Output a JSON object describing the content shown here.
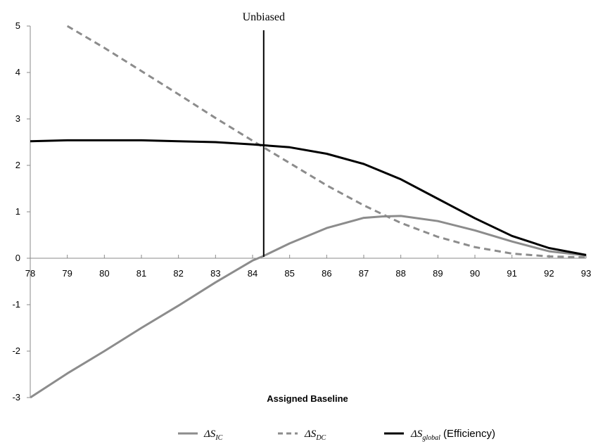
{
  "chart_data": {
    "type": "line",
    "title": "",
    "xlabel": "Assigned Baseline",
    "ylabel": "",
    "xlim": [
      78,
      93
    ],
    "ylim": [
      -3,
      5
    ],
    "x_ticks": [
      "78",
      "79",
      "80",
      "81",
      "82",
      "83",
      "84",
      "85",
      "86",
      "87",
      "88",
      "89",
      "90",
      "91",
      "92",
      "93"
    ],
    "y_ticks": [
      "-3",
      "-2",
      "-1",
      "0",
      "1",
      "2",
      "3",
      "4",
      "5"
    ],
    "grid": false,
    "legend_position": "bottom",
    "annotation": {
      "label": "Unbiased",
      "x": 84.3
    },
    "series": [
      {
        "name": "ΔS_IC",
        "name_main": "ΔS",
        "name_sub": "IC",
        "name_suffix": "",
        "style": "solid",
        "color": "#8c8c8c",
        "x": [
          78,
          79,
          80,
          81,
          82,
          83,
          84,
          84.3,
          85,
          86,
          87,
          87.5,
          88,
          89,
          90,
          91,
          92,
          93
        ],
        "y": [
          -3.0,
          -2.48,
          -2.0,
          -1.5,
          -1.02,
          -0.52,
          -0.05,
          0.05,
          0.32,
          0.65,
          0.87,
          0.9,
          0.91,
          0.8,
          0.6,
          0.36,
          0.15,
          0.06
        ]
      },
      {
        "name": "ΔS_DC",
        "name_main": "ΔS",
        "name_sub": "DC",
        "name_suffix": "",
        "style": "dashed",
        "color": "#8c8c8c",
        "x": [
          79,
          80,
          81,
          82,
          83,
          84,
          85,
          86,
          87,
          88,
          89,
          90,
          91,
          92,
          93
        ],
        "y": [
          5.0,
          4.53,
          4.03,
          3.53,
          3.02,
          2.53,
          2.05,
          1.57,
          1.14,
          0.76,
          0.46,
          0.24,
          0.1,
          0.04,
          0.02
        ]
      },
      {
        "name": "ΔS_global (Efficiency)",
        "name_main": "ΔS",
        "name_sub": "global",
        "name_suffix": " (Efficiency)",
        "style": "solid",
        "color": "#000000",
        "x": [
          78,
          79,
          80,
          81,
          82,
          83,
          84,
          85,
          86,
          87,
          88,
          89,
          90,
          91,
          92,
          93
        ],
        "y": [
          2.52,
          2.54,
          2.54,
          2.54,
          2.52,
          2.5,
          2.45,
          2.39,
          2.25,
          2.03,
          1.7,
          1.28,
          0.86,
          0.48,
          0.22,
          0.07
        ]
      }
    ]
  }
}
